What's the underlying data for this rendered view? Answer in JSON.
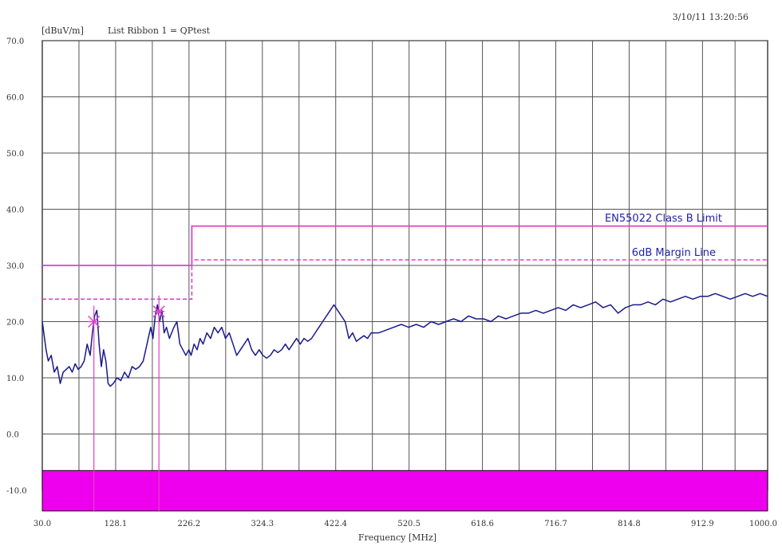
{
  "header": {
    "timestamp": "3/10/11 13:20:56",
    "unit_label": "[dBuV/m]",
    "list_label": "List Ribbon 1 =  QPtest"
  },
  "chart_data": {
    "type": "line",
    "xlabel": "Frequency [MHz]",
    "ylabel": "[dBuV/m]",
    "xlim": [
      30.0,
      1000.0
    ],
    "ylim": [
      -10.0,
      70.0
    ],
    "grid": true,
    "x_ticks": [
      "30.0",
      "128.1",
      "226.2",
      "324.3",
      "422.4",
      "520.5",
      "618.6",
      "716.7",
      "814.8",
      "912.9",
      "1000.0"
    ],
    "x_tick_values": [
      30.0,
      128.1,
      226.2,
      324.3,
      422.4,
      520.5,
      618.6,
      716.7,
      814.8,
      912.9,
      1000.0
    ],
    "y_ticks": [
      "70.0",
      "60.0",
      "50.0",
      "40.0",
      "30.0",
      "20.0",
      "10.0",
      "0.0",
      "-10.0"
    ],
    "y_tick_values": [
      70,
      60,
      50,
      40,
      30,
      20,
      10,
      0,
      -10
    ],
    "annotations": {
      "limit_label": "EN55022 Class B Limit",
      "margin_label": "6dB Margin Line"
    },
    "limit_line": {
      "x": [
        30,
        230,
        230,
        1000
      ],
      "y": [
        30,
        30,
        37,
        37
      ]
    },
    "margin_line": {
      "x": [
        30,
        230,
        230,
        1000
      ],
      "y": [
        24,
        24,
        31,
        31
      ]
    },
    "markers": [
      {
        "x": 99,
        "y": 20
      },
      {
        "x": 186,
        "y": 21.8
      }
    ],
    "series": [
      {
        "values_x": [
          30,
          32,
          35,
          38,
          42,
          46,
          50,
          54,
          58,
          62,
          66,
          70,
          74,
          78,
          82,
          86,
          90,
          94,
          97,
          100,
          103,
          106,
          109,
          112,
          115,
          118,
          121,
          125,
          130,
          135,
          140,
          145,
          150,
          155,
          160,
          165,
          170,
          175,
          178,
          181,
          184,
          187,
          190,
          193,
          196,
          200,
          203,
          206,
          210,
          214,
          218,
          222,
          226,
          229,
          233,
          237,
          241,
          245,
          250,
          255,
          260,
          265,
          270,
          275,
          280,
          285,
          290,
          295,
          300,
          305,
          310,
          315,
          320,
          325,
          330,
          335,
          340,
          345,
          350,
          355,
          360,
          365,
          370,
          375,
          380,
          385,
          390,
          395,
          400,
          405,
          410,
          415,
          420,
          425,
          430,
          435,
          440,
          445,
          450,
          455,
          460,
          465,
          470,
          480,
          490,
          500,
          510,
          520,
          530,
          540,
          550,
          560,
          570,
          580,
          590,
          600,
          610,
          620,
          630,
          640,
          650,
          660,
          670,
          680,
          690,
          700,
          710,
          720,
          730,
          740,
          750,
          760,
          770,
          780,
          790,
          800,
          810,
          820,
          830,
          840,
          850,
          860,
          870,
          880,
          890,
          900,
          910,
          920,
          930,
          940,
          950,
          960,
          970,
          980,
          990,
          1000
        ],
        "values_y": [
          20,
          18,
          15,
          13,
          14,
          11,
          12,
          9,
          11,
          11.5,
          12,
          11,
          12.5,
          11.5,
          12,
          13,
          16,
          14,
          18,
          21,
          22,
          16,
          12,
          15,
          13,
          9,
          8.5,
          9,
          10,
          9.5,
          11,
          10,
          12,
          11.5,
          12,
          13,
          16,
          19,
          17,
          21,
          23,
          20,
          22,
          18,
          19,
          17,
          18,
          19,
          20,
          16,
          15,
          14,
          15,
          14,
          16,
          15,
          17,
          16,
          18,
          17,
          19,
          18,
          19,
          17,
          18,
          16,
          14,
          15,
          16,
          17,
          15,
          14,
          15,
          14,
          13.5,
          14,
          15,
          14.5,
          15,
          16,
          15,
          16,
          17,
          16,
          17,
          16.5,
          17,
          18,
          19,
          20,
          21,
          22,
          23,
          22,
          21,
          20,
          17,
          18,
          16.5,
          17,
          17.5,
          17,
          18,
          18,
          18.5,
          19,
          19.5,
          19,
          19.5,
          19,
          20,
          19.5,
          20,
          20.5,
          20,
          21,
          20.5,
          20.5,
          20,
          21,
          20.5,
          21,
          21.5,
          21.5,
          22,
          21.5,
          22,
          22.5,
          22,
          23,
          22.5,
          23,
          23.5,
          22.5,
          23,
          21.5,
          22.5,
          23,
          23,
          23.5,
          23,
          24,
          23.5,
          24,
          24.5,
          24,
          24.5,
          24.5,
          25,
          24.5,
          24,
          24.5,
          25,
          24.5,
          25,
          24.5
        ]
      }
    ]
  },
  "colors": {
    "grid": "#555555",
    "trace": "#1a1a8c",
    "limit": "#e040c8",
    "band": "#ee00ee",
    "label": "#2222aa"
  }
}
